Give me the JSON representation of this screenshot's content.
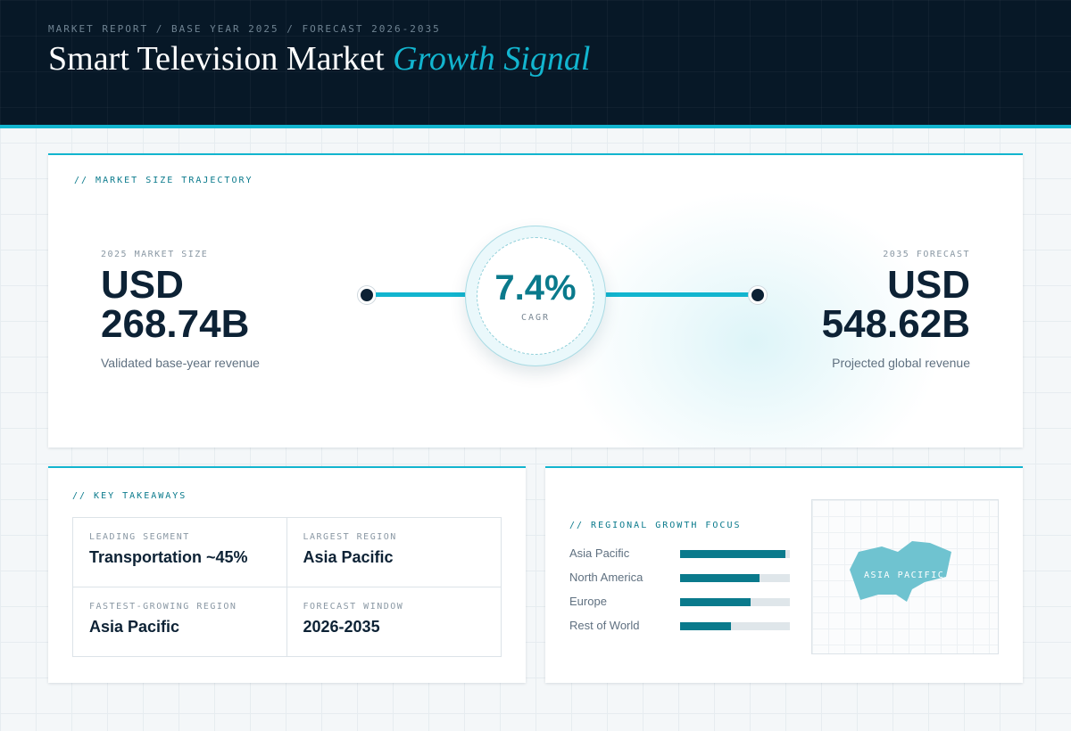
{
  "header": {
    "eyebrow": "MARKET REPORT / BASE YEAR 2025 / FORECAST 2026-2035",
    "title_main": "Smart Television Market",
    "title_accent": "Growth Signal"
  },
  "trajectory": {
    "label": "// MARKET SIZE TRAJECTORY",
    "base": {
      "label": "2025 MARKET SIZE",
      "value": "USD 268.74B",
      "sub": "Validated base-year revenue"
    },
    "forecast": {
      "label": "2035 FORECAST",
      "value": "USD 548.62B",
      "sub": "Projected global revenue"
    },
    "cagr": {
      "value": "7.4%",
      "label": "CAGR"
    }
  },
  "takeaways": {
    "label": "// KEY TAKEAWAYS",
    "items": [
      {
        "label": "LEADING SEGMENT",
        "value": "Transportation ~45%"
      },
      {
        "label": "LARGEST REGION",
        "value": "Asia Pacific"
      },
      {
        "label": "FASTEST-GROWING REGION",
        "value": "Asia Pacific"
      },
      {
        "label": "FORECAST WINDOW",
        "value": "2026-2035"
      }
    ]
  },
  "regional": {
    "label": "// REGIONAL GROWTH FOCUS",
    "bars": [
      {
        "name": "Asia Pacific",
        "level": 0.96
      },
      {
        "name": "North America",
        "level": 0.72
      },
      {
        "name": "Europe",
        "level": 0.64
      },
      {
        "name": "Rest of World",
        "level": 0.46
      }
    ],
    "map_label": "ASIA PACIFIC"
  },
  "colors": {
    "accent": "#12b5cf",
    "teal": "#0a7a8c",
    "navy": "#071827",
    "map_fill": "#6fc3d0"
  }
}
